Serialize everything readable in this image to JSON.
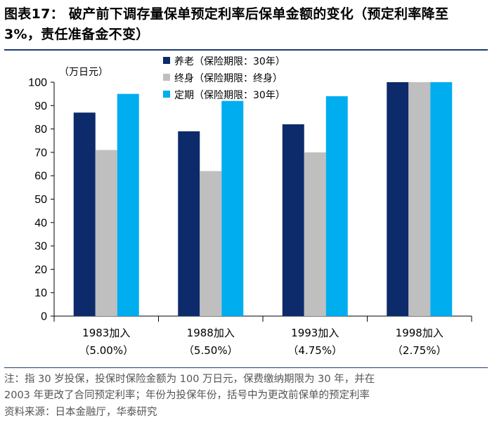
{
  "title": "图表17：  破产前下调存量保单预定利率后保单金额的变化（预定利率降至 3%，责任准备金不变）",
  "chart_data": {
    "type": "bar",
    "unit_label": "（万日元）",
    "categories": [
      {
        "year": "1983加入",
        "rate": "（5.00%）"
      },
      {
        "year": "1988加入",
        "rate": "（5.50%）"
      },
      {
        "year": "1993加入",
        "rate": "（4.75%）"
      },
      {
        "year": "1998加入",
        "rate": "（2.75%）"
      }
    ],
    "series": [
      {
        "name": "养老（保险期限：30年）",
        "color": "#0d2a6b",
        "values": [
          87,
          79,
          82,
          100
        ]
      },
      {
        "name": "终身（保险期限：终身）",
        "color": "#bfbfbf",
        "values": [
          71,
          62,
          70,
          100
        ]
      },
      {
        "name": "定期（保险期限：30年）",
        "color": "#00adef",
        "values": [
          95,
          92,
          94,
          100
        ]
      }
    ],
    "ylim": [
      0,
      100
    ],
    "yticks": [
      0,
      10,
      20,
      30,
      40,
      50,
      60,
      70,
      80,
      90,
      100
    ],
    "legend_position": "top-center"
  },
  "notes": {
    "line1": "注：指 30 岁投保，投保时保险金额为 100 万日元，保费缴纳期限为 30 年，并在",
    "line2": "2003 年更改了合同预定利率；年份为投保年份，括号中为更改前保单的预定利率",
    "source": "资料来源：日本金融厅，华泰研究"
  }
}
